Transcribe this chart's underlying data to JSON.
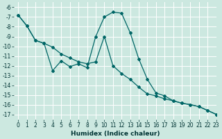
{
  "xlabel": "Humidex (Indice chaleur)",
  "background_color": "#cce8e0",
  "grid_color": "#b0d8d0",
  "line_color": "#006666",
  "xlim": [
    -0.5,
    23
  ],
  "ylim": [
    -17.5,
    -5.5
  ],
  "yticks": [
    -6,
    -7,
    -8,
    -9,
    -10,
    -11,
    -12,
    -13,
    -14,
    -15,
    -16,
    -17
  ],
  "xticks": [
    0,
    1,
    2,
    3,
    4,
    5,
    6,
    7,
    8,
    9,
    10,
    11,
    12,
    13,
    14,
    15,
    16,
    17,
    18,
    19,
    20,
    21,
    22,
    23
  ],
  "line1_x": [
    0,
    1,
    2,
    3,
    4,
    5,
    6,
    7,
    8,
    9,
    10,
    11,
    12,
    13,
    14,
    15,
    16,
    17,
    18,
    19,
    20,
    21,
    22,
    23
  ],
  "line1_y": [
    -6.8,
    -7.9,
    -9.4,
    -9.7,
    -12.5,
    -11.5,
    -12.1,
    -11.8,
    -12.2,
    -9.0,
    -7.0,
    -6.5,
    -6.6,
    -8.6,
    -11.3,
    -13.4,
    -14.8,
    -15.1,
    -15.6,
    -15.85,
    -16.0,
    -16.2,
    -16.6,
    -17.0
  ],
  "line2_x": [
    0,
    1,
    2,
    3,
    4,
    5,
    6,
    7,
    8,
    9,
    10,
    11,
    12,
    13,
    14,
    15,
    16,
    17,
    18,
    19,
    20,
    21,
    22,
    23
  ],
  "line2_y": [
    -6.8,
    -7.9,
    -9.4,
    -9.7,
    -10.1,
    -10.8,
    -11.2,
    -11.6,
    -11.8,
    -11.6,
    -9.0,
    -12.0,
    -12.8,
    -13.4,
    -14.2,
    -14.9,
    -15.1,
    -15.4,
    -15.6,
    -15.85,
    -16.0,
    -16.2,
    -16.6,
    -17.0
  ]
}
